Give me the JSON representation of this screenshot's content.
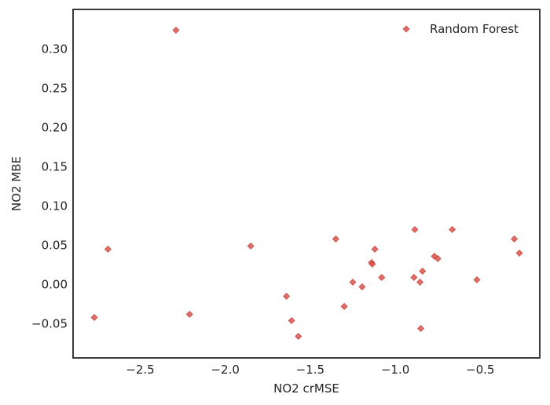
{
  "chart_data": {
    "type": "scatter",
    "title": "",
    "xlabel": "NO2 crMSE",
    "ylabel": "NO2 MBE",
    "xlim": [
      -2.895,
      -0.15
    ],
    "ylim": [
      -0.0935,
      0.3505
    ],
    "xticks": [
      -2.5,
      -2.0,
      -1.5,
      -1.0,
      -0.5
    ],
    "xtick_labels": [
      "−2.5",
      "−2.0",
      "−1.5",
      "−1.0",
      "−0.5"
    ],
    "yticks": [
      -0.05,
      0.0,
      0.05,
      0.1,
      0.15,
      0.2,
      0.25,
      0.3
    ],
    "ytick_labels": [
      "−0.05",
      "0.00",
      "0.05",
      "0.10",
      "0.15",
      "0.20",
      "0.25",
      "0.30"
    ],
    "grid": false,
    "legend_position": "top-right",
    "marker": "diamond",
    "color": "#d9534f",
    "series": [
      {
        "name": "Random Forest",
        "points": [
          {
            "x": -2.29,
            "y": 0.324
          },
          {
            "x": -2.77,
            "y": -0.042
          },
          {
            "x": -2.69,
            "y": 0.045
          },
          {
            "x": -2.21,
            "y": -0.038
          },
          {
            "x": -1.85,
            "y": 0.049
          },
          {
            "x": -1.64,
            "y": -0.015
          },
          {
            "x": -1.61,
            "y": -0.046
          },
          {
            "x": -1.57,
            "y": -0.066
          },
          {
            "x": -1.35,
            "y": 0.058
          },
          {
            "x": -1.3,
            "y": -0.028
          },
          {
            "x": -1.25,
            "y": 0.003
          },
          {
            "x": -1.195,
            "y": -0.003
          },
          {
            "x": -1.14,
            "y": 0.028
          },
          {
            "x": -1.135,
            "y": 0.026
          },
          {
            "x": -1.12,
            "y": 0.045
          },
          {
            "x": -1.08,
            "y": 0.009
          },
          {
            "x": -0.885,
            "y": 0.07
          },
          {
            "x": -0.89,
            "y": 0.009
          },
          {
            "x": -0.855,
            "y": 0.003
          },
          {
            "x": -0.84,
            "y": 0.017
          },
          {
            "x": -0.85,
            "y": -0.056
          },
          {
            "x": -0.77,
            "y": 0.036
          },
          {
            "x": -0.75,
            "y": 0.033
          },
          {
            "x": -0.665,
            "y": 0.07
          },
          {
            "x": -0.52,
            "y": 0.006
          },
          {
            "x": -0.3,
            "y": 0.058
          },
          {
            "x": -0.27,
            "y": 0.04
          }
        ]
      }
    ]
  }
}
